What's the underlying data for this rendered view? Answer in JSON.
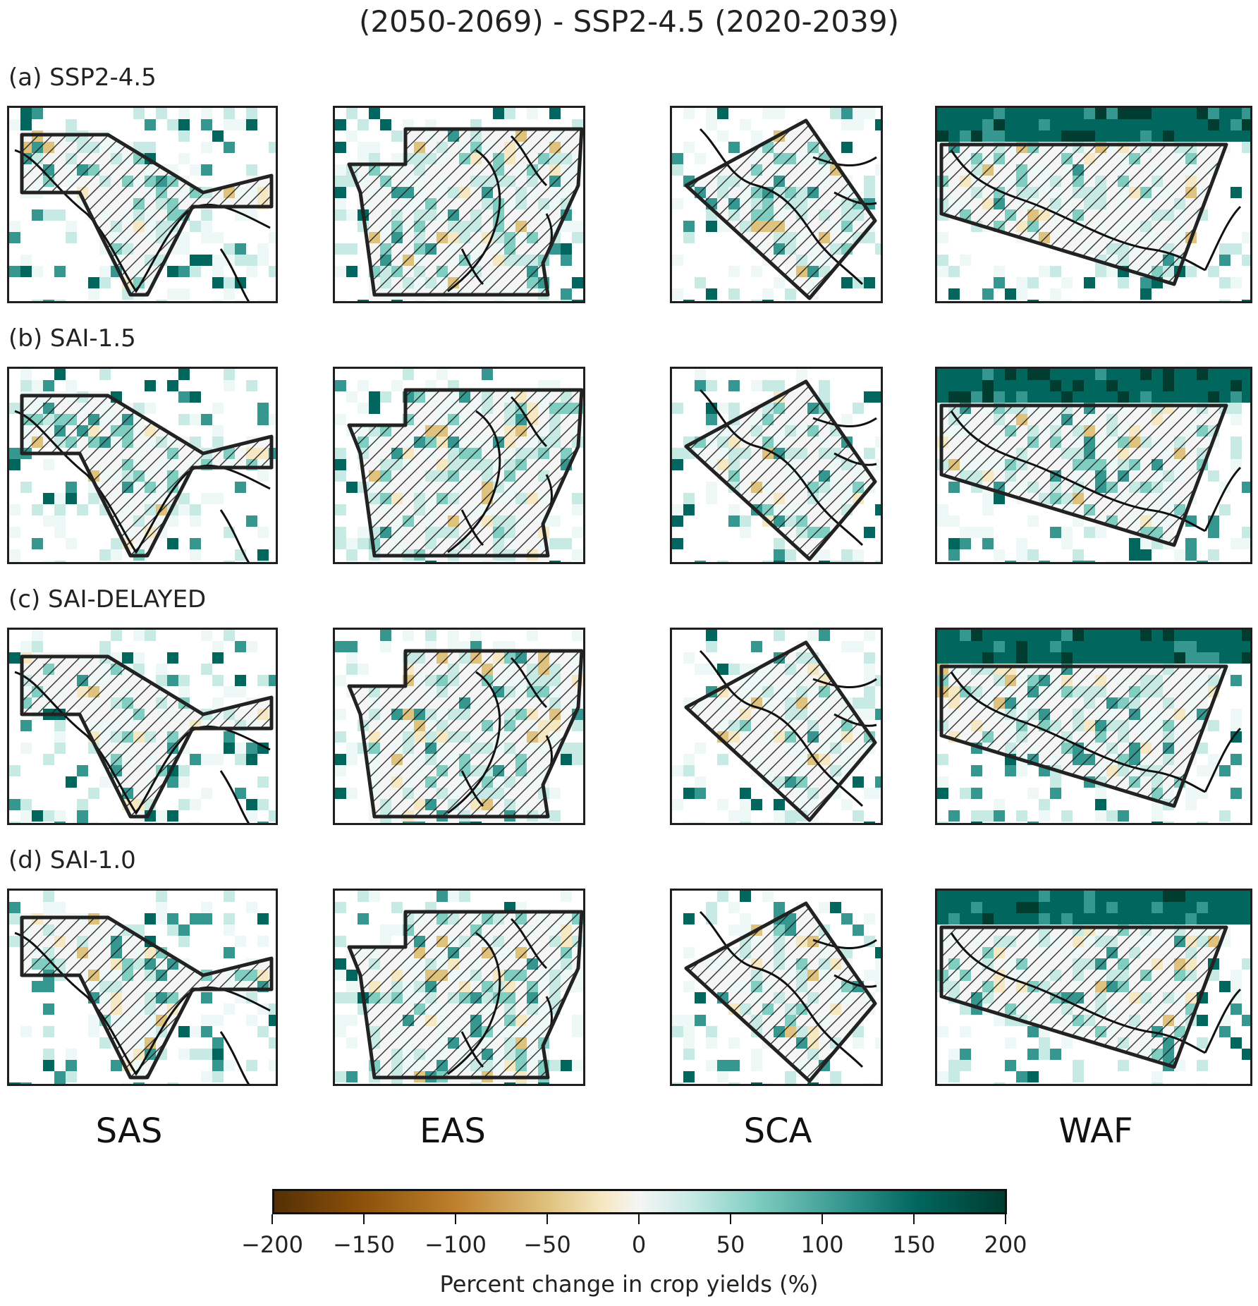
{
  "title": "(2050-2069) - SSP2-4.5 (2020-2039)",
  "rows": [
    {
      "label": "(a) SSP2-4.5"
    },
    {
      "label": "(b) SAI-1.5"
    },
    {
      "label": "(c) SAI-DELAYED"
    },
    {
      "label": "(d) SAI-1.0"
    }
  ],
  "regions": [
    "SAS",
    "EAS",
    "SCA",
    "WAF"
  ],
  "colorbar": {
    "label": "Percent change in crop yields (%)",
    "ticks": [
      "−200",
      "−150",
      "−100",
      "−50",
      "0",
      "50",
      "100",
      "150",
      "200"
    ],
    "range": [
      -200,
      200
    ],
    "colors": [
      "#543005",
      "#8c510a",
      "#bf812d",
      "#dfc27d",
      "#f6e8c3",
      "#f5f5f5",
      "#c7eae5",
      "#80cdc1",
      "#35978f",
      "#01665e",
      "#003c30"
    ]
  },
  "map_colors": {
    "hatch": "#1a1a1a",
    "box": "#222222",
    "coast": "#111111"
  }
}
